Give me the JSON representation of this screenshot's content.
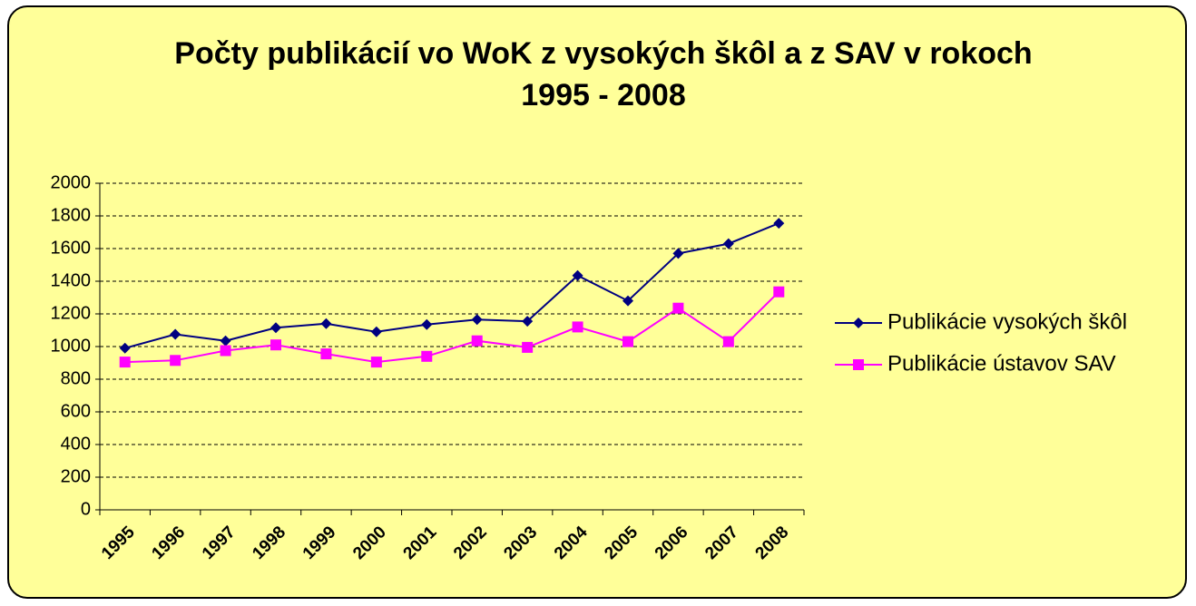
{
  "chart_data": {
    "type": "line",
    "title": "Počty publikácií vo WoK z vysokých škôl a z SAV v rokoch 1995 - 2008",
    "categories": [
      "1995",
      "1996",
      "1997",
      "1998",
      "1999",
      "2000",
      "2001",
      "2002",
      "2003",
      "2004",
      "2005",
      "2006",
      "2007",
      "2008"
    ],
    "series": [
      {
        "name": "Publikácie vysokých škôl",
        "color": "#000080",
        "marker": "diamond",
        "values": [
          990,
          1075,
          1035,
          1115,
          1140,
          1090,
          1135,
          1165,
          1155,
          1435,
          1280,
          1570,
          1630,
          1755
        ]
      },
      {
        "name": "Publikácie ústavov SAV",
        "color": "#ff00ff",
        "marker": "square",
        "values": [
          905,
          915,
          975,
          1010,
          955,
          905,
          940,
          1035,
          995,
          1120,
          1030,
          1235,
          1030,
          1335
        ]
      }
    ],
    "ylim": [
      0,
      2000
    ],
    "yticks": [
      0,
      200,
      400,
      600,
      800,
      1000,
      1200,
      1400,
      1600,
      1800,
      2000
    ],
    "grid": true,
    "legend": "right"
  }
}
